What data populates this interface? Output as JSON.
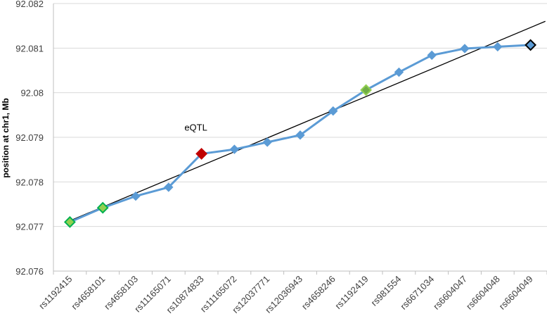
{
  "chart_data": {
    "type": "line",
    "title": "",
    "xlabel": "",
    "ylabel": "position at chr1, Mb",
    "ylim": [
      92.076,
      92.082
    ],
    "yticks": [
      "92.076",
      "92.077",
      "92.078",
      "92.079",
      "92.08",
      "92.081",
      "92.082"
    ],
    "grid": true,
    "legend": "none",
    "categories": [
      "rs1192415",
      "rs4658101",
      "rs4658103",
      "rs11165071",
      "rs10874833",
      "rs11165072",
      "rs12037771",
      "rs12036943",
      "rs4658246",
      "rs1192419",
      "rs981554",
      "rs6671034",
      "rs6604047",
      "rs6604048",
      "rs6604049"
    ],
    "series": [
      {
        "values": [
          92.0771,
          92.07742,
          92.07768,
          92.07788,
          92.07863,
          92.07873,
          92.07889,
          92.07905,
          92.07959,
          92.08006,
          92.08046,
          92.08084,
          92.08099,
          92.08103,
          92.08107
        ],
        "color": "#5b9bd5",
        "marker": "diamond"
      }
    ],
    "trendline": {
      "type": "linear",
      "color": "#000000"
    },
    "highlighted_points": [
      {
        "category": "rs1192415",
        "fill": "#92d050",
        "stroke": "#00b050"
      },
      {
        "category": "rs4658101",
        "fill": "#92d050",
        "stroke": "#00b050"
      },
      {
        "category": "rs10874833",
        "fill": "#c00000",
        "stroke": "#c00000"
      },
      {
        "category": "rs1192419",
        "fill": "#70ad47",
        "stroke": "#92d050"
      },
      {
        "category": "rs6604049",
        "fill": "#5b9bd5",
        "stroke": "#000000"
      }
    ],
    "annotations": [
      {
        "text": "eQTL",
        "category": "rs10874833"
      }
    ],
    "colors": {
      "grid": "#d9d9d9",
      "axis": "#bfbfbf",
      "series": "#5b9bd5",
      "trend": "#000000"
    }
  }
}
